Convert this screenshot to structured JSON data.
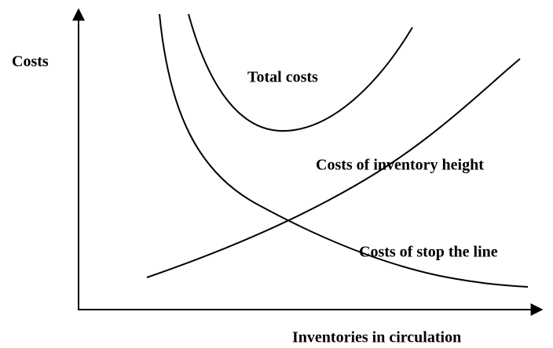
{
  "y_axis_label": "Costs",
  "x_axis_label": "Inventories in circulation",
  "curves": [
    {
      "label": "Total costs"
    },
    {
      "label": "Costs of inventory height"
    },
    {
      "label": "Costs of stop the line"
    }
  ]
}
